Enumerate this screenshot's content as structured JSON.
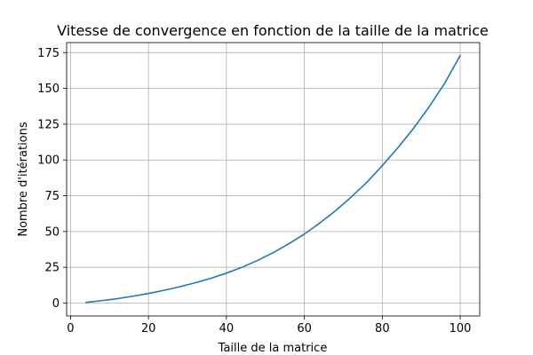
{
  "chart_data": {
    "type": "line",
    "title": "Vitesse de convergence en fonction de la taille de la matrice",
    "xlabel": "Taille de la matrice",
    "ylabel": "Nombre d'itérations",
    "xlim": [
      -1,
      105
    ],
    "ylim": [
      -9,
      182
    ],
    "xticks": [
      0,
      20,
      40,
      60,
      80,
      100
    ],
    "yticks": [
      0,
      25,
      50,
      75,
      100,
      125,
      150,
      175
    ],
    "grid": true,
    "legend": "none",
    "colors": {
      "line": "#1f77b4",
      "grid": "#b0b0b0",
      "axes": "#000000"
    },
    "series": [
      {
        "x": [
          4,
          8,
          12,
          16,
          20,
          24,
          28,
          32,
          36,
          40,
          44,
          48,
          52,
          56,
          60,
          64,
          68,
          72,
          76,
          80,
          84,
          88,
          92,
          96,
          100
        ],
        "values": [
          0.5,
          1.7,
          3.1,
          4.8,
          6.7,
          8.9,
          11.4,
          14.2,
          17.3,
          20.9,
          25.0,
          29.8,
          35.2,
          41.4,
          48.2,
          56.0,
          64.5,
          74.0,
          84.3,
          96.0,
          108.5,
          122.0,
          137.0,
          153.5,
          173.0
        ]
      }
    ]
  }
}
